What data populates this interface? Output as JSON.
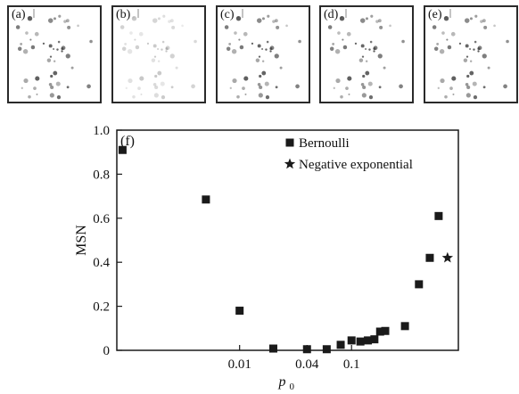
{
  "panels": [
    {
      "label": "(a)",
      "spots": "full"
    },
    {
      "label": "(b)",
      "spots": "faint"
    },
    {
      "label": "(c)",
      "spots": "full"
    },
    {
      "label": "(d)",
      "spots": "full"
    },
    {
      "label": "(e)",
      "spots": "full"
    }
  ],
  "chart_data": {
    "type": "scatter",
    "panel_label": "(f)",
    "xlabel": "p",
    "xlabel_subscript": "0",
    "ylabel": "MSN",
    "x_scale": "log",
    "xlim": [
      0.0008,
      0.9
    ],
    "ylim": [
      0,
      1.0
    ],
    "x_ticks": [
      {
        "value": 0.01,
        "label": "0.01"
      },
      {
        "value": 0.04,
        "label": "0.04"
      },
      {
        "value": 0.1,
        "label": "0.1"
      }
    ],
    "y_ticks": [
      {
        "value": 0,
        "label": "0"
      },
      {
        "value": 0.2,
        "label": "0.2"
      },
      {
        "value": 0.4,
        "label": "0.4"
      },
      {
        "value": 0.6,
        "label": "0.6"
      },
      {
        "value": 0.8,
        "label": "0.8"
      },
      {
        "value": 1.0,
        "label": "1.0"
      }
    ],
    "grid": false,
    "legend_position": "top-right",
    "series": [
      {
        "name": "Bernoulli",
        "marker": "square",
        "color": "#1a1a1a",
        "points": [
          [
            0.0009,
            0.91
          ],
          [
            0.005,
            0.685
          ],
          [
            0.01,
            0.18
          ],
          [
            0.02,
            0.008
          ],
          [
            0.04,
            0.005
          ],
          [
            0.06,
            0.005
          ],
          [
            0.08,
            0.025
          ],
          [
            0.1,
            0.045
          ],
          [
            0.12,
            0.04
          ],
          [
            0.14,
            0.045
          ],
          [
            0.16,
            0.05
          ],
          [
            0.18,
            0.085
          ],
          [
            0.2,
            0.088
          ],
          [
            0.3,
            0.11
          ],
          [
            0.4,
            0.3
          ],
          [
            0.5,
            0.42
          ],
          [
            0.6,
            0.61
          ]
        ]
      },
      {
        "name": "Negative exponential",
        "marker": "star",
        "color": "#1a1a1a",
        "points": [
          [
            0.72,
            0.42
          ]
        ]
      }
    ]
  }
}
